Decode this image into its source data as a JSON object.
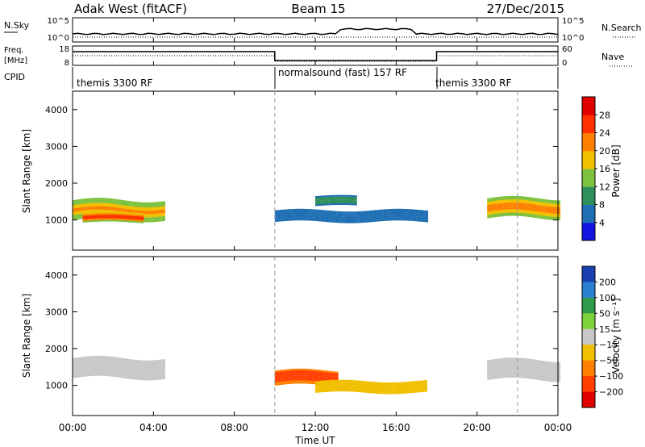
{
  "header": {
    "station": "Adak West (fitACF)",
    "beam": "Beam 15",
    "date": "27/Dec/2015"
  },
  "noise_panel": {
    "left_label": "N.Sky",
    "right_label": "N.Search",
    "left_ticks": [
      "10^5",
      "10^0"
    ],
    "right_ticks": [
      "10^5",
      "10^0"
    ]
  },
  "freq_panel": {
    "left_label_top": "Freq.",
    "left_label_bottom": "[MHz]",
    "right_label": "Nave",
    "left_ticks": [
      "18",
      "8"
    ],
    "right_ticks": [
      "60",
      "0"
    ],
    "cpid_label": "CPID",
    "cpid_segments": [
      {
        "label": "themis 3300 RF",
        "start": 0,
        "end": 10
      },
      {
        "label": "normalsound (fast) 157 RF",
        "start": 10,
        "end": 18
      },
      {
        "label": "themis 3300 RF",
        "start": 18,
        "end": 24
      }
    ]
  },
  "x_axis": {
    "label": "Time UT",
    "ticks": [
      "00:00",
      "04:00",
      "08:00",
      "12:00",
      "16:00",
      "20:00",
      "00:00"
    ],
    "range_hours": [
      0,
      24
    ]
  },
  "power_panel": {
    "ylabel": "Slant Range [km]",
    "yticks": [
      "1000",
      "2000",
      "3000",
      "4000"
    ],
    "colorbar_label": "Power [dB]",
    "colorbar_ticks": [
      "4",
      "8",
      "12",
      "16",
      "20",
      "24",
      "28"
    ],
    "colorbar_colors": [
      "#1414e0",
      "#1f6fb4",
      "#2f8f5b",
      "#7dc23e",
      "#f0c000",
      "#ff8000",
      "#ff3000",
      "#e00000"
    ]
  },
  "velocity_panel": {
    "ylabel": "Slant Range [km]",
    "yticks": [
      "1000",
      "2000",
      "3000",
      "4000"
    ],
    "colorbar_label": "Velocity [m s⁻¹]",
    "colorbar_ticks": [
      "200",
      "100",
      "50",
      "15",
      "−15",
      "−50",
      "−100",
      "−200"
    ],
    "colorbar_colors": [
      "#1a3fb0",
      "#2b7fd0",
      "#2f9a4a",
      "#7ed23a",
      "#c8c8c8",
      "#f0c000",
      "#ff8000",
      "#ff4000",
      "#e00000"
    ]
  },
  "chart_data": {
    "type": "heatmap",
    "x_hours_range": [
      0,
      24
    ],
    "y_range_km": [
      180,
      4500
    ],
    "dashed_time_markers_hours": [
      10,
      22
    ],
    "power_regions": [
      {
        "t_start": 0.0,
        "t_end": 4.5,
        "range_center_km": 1250,
        "range_halfwidth_km": 250,
        "power_db": 22
      },
      {
        "t_start": 0.5,
        "t_end": 3.5,
        "range_center_km": 1050,
        "range_halfwidth_km": 120,
        "power_db": 28
      },
      {
        "t_start": 10.0,
        "t_end": 17.5,
        "range_center_km": 1100,
        "range_halfwidth_km": 150,
        "power_db": 8
      },
      {
        "t_start": 12.0,
        "t_end": 14.0,
        "range_center_km": 1500,
        "range_halfwidth_km": 120,
        "power_db": 12
      },
      {
        "t_start": 20.5,
        "t_end": 24.0,
        "range_center_km": 1300,
        "range_halfwidth_km": 250,
        "power_db": 24
      }
    ],
    "velocity_regions": [
      {
        "t_start": 0.0,
        "t_end": 4.5,
        "range_center_km": 1450,
        "range_halfwidth_km": 250,
        "velocity_ms": 0
      },
      {
        "t_start": 10.0,
        "t_end": 13.0,
        "range_center_km": 1200,
        "range_halfwidth_km": 200,
        "velocity_ms": -150
      },
      {
        "t_start": 12.0,
        "t_end": 17.5,
        "range_center_km": 950,
        "range_halfwidth_km": 150,
        "velocity_ms": -40
      },
      {
        "t_start": 20.5,
        "t_end": 24.0,
        "range_center_km": 1400,
        "range_halfwidth_km": 250,
        "velocity_ms": 0
      }
    ]
  }
}
